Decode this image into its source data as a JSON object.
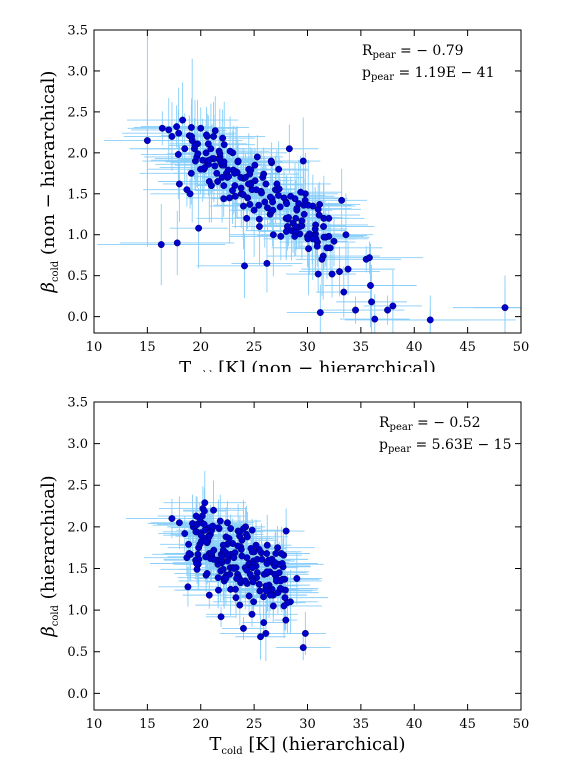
{
  "chart_data": [
    {
      "type": "scatter",
      "xlabel": "T_cold [K] (non − hierarchical)",
      "xlabel_main": "T",
      "xlabel_sub": "cold",
      "xlabel_rest": " [K] (non − hierarchical)",
      "ylabel": "β_cold (non − hierarchical)",
      "ylabel_main": "β",
      "ylabel_sub": "cold",
      "ylabel_rest": " (non − hierarchical)",
      "xlim": [
        10,
        50
      ],
      "ylim": [
        -0.2,
        3.5
      ],
      "xticks": [
        "10",
        "15",
        "20",
        "25",
        "30",
        "35",
        "40",
        "45",
        "50"
      ],
      "yticks": [
        "0.0",
        "0.5",
        "1.0",
        "1.5",
        "2.0",
        "2.5",
        "3.0",
        "3.5"
      ],
      "grid": false,
      "annotations": [
        {
          "main": "R",
          "sub": "pear",
          "rest": " = − 0.79"
        },
        {
          "main": "p",
          "sub": "pear",
          "rest": " = 1.19E − 41"
        }
      ],
      "colors": {
        "points": "#0000cc",
        "errorbars": "#87cefa"
      },
      "seed": 11,
      "points": [
        [
          15.0,
          2.15
        ],
        [
          16.3,
          0.88
        ],
        [
          16.4,
          2.3
        ],
        [
          17.0,
          2.28
        ],
        [
          17.3,
          2.2
        ],
        [
          17.8,
          0.9
        ],
        [
          18.0,
          1.62
        ],
        [
          18.3,
          2.4
        ],
        [
          18.5,
          2.05
        ],
        [
          18.7,
          1.55
        ],
        [
          19.0,
          1.5
        ],
        [
          19.2,
          2.15
        ],
        [
          19.5,
          1.9
        ],
        [
          19.8,
          1.08
        ],
        [
          20.0,
          2.3
        ],
        [
          20.3,
          1.8
        ],
        [
          20.5,
          2.0
        ],
        [
          20.8,
          1.65
        ],
        [
          21.0,
          1.6
        ],
        [
          21.2,
          2.2
        ],
        [
          21.5,
          1.75
        ],
        [
          21.8,
          1.95
        ],
        [
          22.0,
          1.85
        ],
        [
          22.2,
          2.1
        ],
        [
          22.5,
          1.7
        ],
        [
          22.7,
          1.45
        ],
        [
          23.0,
          2.0
        ],
        [
          23.2,
          1.6
        ],
        [
          23.5,
          1.9
        ],
        [
          23.8,
          1.5
        ],
        [
          24.0,
          1.35
        ],
        [
          24.1,
          0.62
        ],
        [
          24.3,
          1.2
        ],
        [
          24.5,
          1.8
        ],
        [
          24.8,
          1.55
        ],
        [
          25.0,
          1.3
        ],
        [
          25.3,
          1.95
        ],
        [
          25.5,
          1.1
        ],
        [
          25.8,
          1.7
        ],
        [
          26.0,
          1.4
        ],
        [
          26.2,
          0.65
        ],
        [
          26.5,
          1.25
        ],
        [
          26.8,
          1.0
        ],
        [
          27.0,
          1.55
        ],
        [
          27.3,
          1.8
        ],
        [
          27.5,
          0.98
        ],
        [
          27.8,
          1.45
        ],
        [
          28.0,
          1.2
        ],
        [
          28.3,
          2.05
        ],
        [
          28.5,
          1.05
        ],
        [
          28.8,
          0.98
        ],
        [
          29.0,
          1.3
        ],
        [
          29.3,
          1.1
        ],
        [
          29.6,
          1.9
        ],
        [
          29.8,
          1.5
        ],
        [
          30.0,
          0.98
        ],
        [
          30.5,
          1.35
        ],
        [
          30.8,
          0.95
        ],
        [
          31.0,
          0.52
        ],
        [
          31.2,
          0.05
        ],
        [
          31.5,
          1.1
        ],
        [
          32.0,
          1.2
        ],
        [
          32.3,
          0.52
        ],
        [
          33.0,
          0.55
        ],
        [
          33.2,
          1.42
        ],
        [
          33.4,
          0.3
        ],
        [
          33.6,
          1.0
        ],
        [
          33.8,
          0.58
        ],
        [
          34.5,
          0.08
        ],
        [
          35.5,
          0.7
        ],
        [
          35.8,
          0.72
        ],
        [
          35.9,
          0.38
        ],
        [
          36.0,
          0.18
        ],
        [
          36.3,
          -0.03
        ],
        [
          37.5,
          0.08
        ],
        [
          38.0,
          0.13
        ],
        [
          41.5,
          -0.04
        ],
        [
          48.5,
          0.11
        ]
      ],
      "cloud": {
        "count": 125,
        "x_range": [
          17.5,
          32
        ],
        "center": [
          [
            20,
            2.05
          ],
          [
            29,
            1.2
          ]
        ],
        "spread": 0.22
      }
    },
    {
      "type": "scatter",
      "xlabel": "T_cold [K] (hierarchical)",
      "xlabel_main": "T",
      "xlabel_sub": "cold",
      "xlabel_rest": " [K] (hierarchical)",
      "ylabel": "β_cold (hierarchical)",
      "ylabel_main": "β",
      "ylabel_sub": "cold",
      "ylabel_rest": " (hierarchical)",
      "xlim": [
        10,
        50
      ],
      "ylim": [
        -0.2,
        3.5
      ],
      "xticks": [
        "10",
        "15",
        "20",
        "25",
        "30",
        "35",
        "40",
        "45",
        "50"
      ],
      "yticks": [
        "0.0",
        "0.5",
        "1.0",
        "1.5",
        "2.0",
        "2.5",
        "3.0",
        "3.5"
      ],
      "grid": false,
      "annotations": [
        {
          "main": "R",
          "sub": "pear",
          "rest": " = − 0.52"
        },
        {
          "main": "p",
          "sub": "pear",
          "rest": " = 5.63E − 15"
        }
      ],
      "colors": {
        "points": "#0000cc",
        "errorbars": "#87cefa"
      },
      "seed": 29,
      "points": [
        [
          17.3,
          2.1
        ],
        [
          18.0,
          2.05
        ],
        [
          18.5,
          1.92
        ],
        [
          18.8,
          1.28
        ],
        [
          19.3,
          2.0
        ],
        [
          19.8,
          1.75
        ],
        [
          20.2,
          2.22
        ],
        [
          20.5,
          1.42
        ],
        [
          20.8,
          1.18
        ],
        [
          21.2,
          2.2
        ],
        [
          21.5,
          1.6
        ],
        [
          21.9,
          0.92
        ],
        [
          22.2,
          1.35
        ],
        [
          22.5,
          2.05
        ],
        [
          22.8,
          1.25
        ],
        [
          23.0,
          1.8
        ],
        [
          23.3,
          1.15
        ],
        [
          23.5,
          1.95
        ],
        [
          23.8,
          1.35
        ],
        [
          24.0,
          0.78
        ],
        [
          24.2,
          2.0
        ],
        [
          24.5,
          1.55
        ],
        [
          24.8,
          0.95
        ],
        [
          25.0,
          1.7
        ],
        [
          25.3,
          1.45
        ],
        [
          25.6,
          0.68
        ],
        [
          25.9,
          0.85
        ],
        [
          26.1,
          0.72
        ],
        [
          26.4,
          1.3
        ],
        [
          26.8,
          1.05
        ],
        [
          27.2,
          1.75
        ],
        [
          27.6,
          1.25
        ],
        [
          28.0,
          1.95
        ],
        [
          28.4,
          1.1
        ],
        [
          29.0,
          1.38
        ],
        [
          29.6,
          0.55
        ],
        [
          29.8,
          0.72
        ]
      ],
      "cloud": {
        "count": 165,
        "x_range": [
          19,
          28
        ],
        "center": [
          [
            20,
            1.85
          ],
          [
            27,
            1.35
          ]
        ],
        "spread": 0.25
      }
    }
  ]
}
